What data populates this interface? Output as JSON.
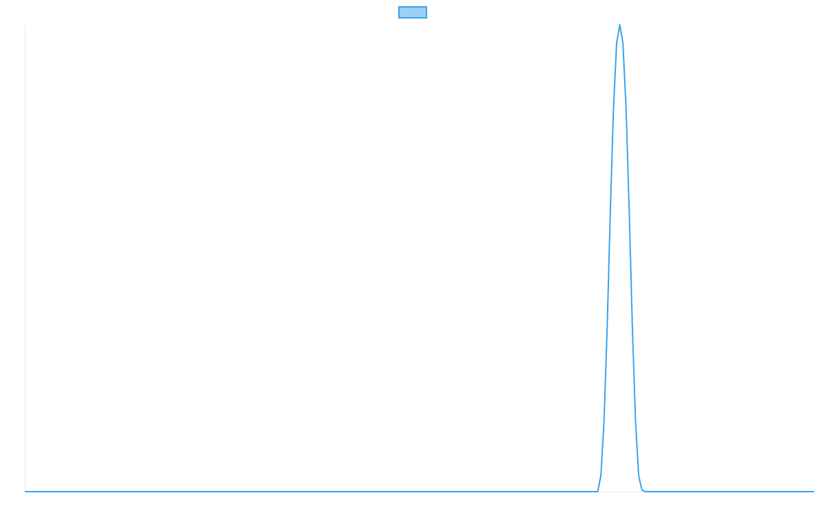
{
  "colors": {
    "series_line": "#36a2eb",
    "series_fill": "#9ad0f5",
    "axis_line": "#e5e5e5"
  },
  "chart_data": {
    "type": "line",
    "title": "",
    "xlabel": "",
    "ylabel": "",
    "grid": false,
    "legend": "top-center",
    "xlim": [
      0,
      100
    ],
    "ylim": [
      0,
      1
    ],
    "series": [
      {
        "name": "",
        "x": [
          0,
          72.6,
          73.0,
          73.4,
          73.8,
          74.2,
          74.6,
          75.0,
          75.4,
          75.8,
          76.2,
          76.6,
          77.0,
          77.4,
          77.8,
          78.2,
          78.6,
          79.0,
          79.4,
          100
        ],
        "y": [
          0,
          0,
          0.034,
          0.15,
          0.35,
          0.6,
          0.82,
          0.96,
          1.0,
          0.96,
          0.82,
          0.6,
          0.35,
          0.15,
          0.034,
          0.004,
          0,
          0,
          0,
          0
        ]
      }
    ]
  }
}
